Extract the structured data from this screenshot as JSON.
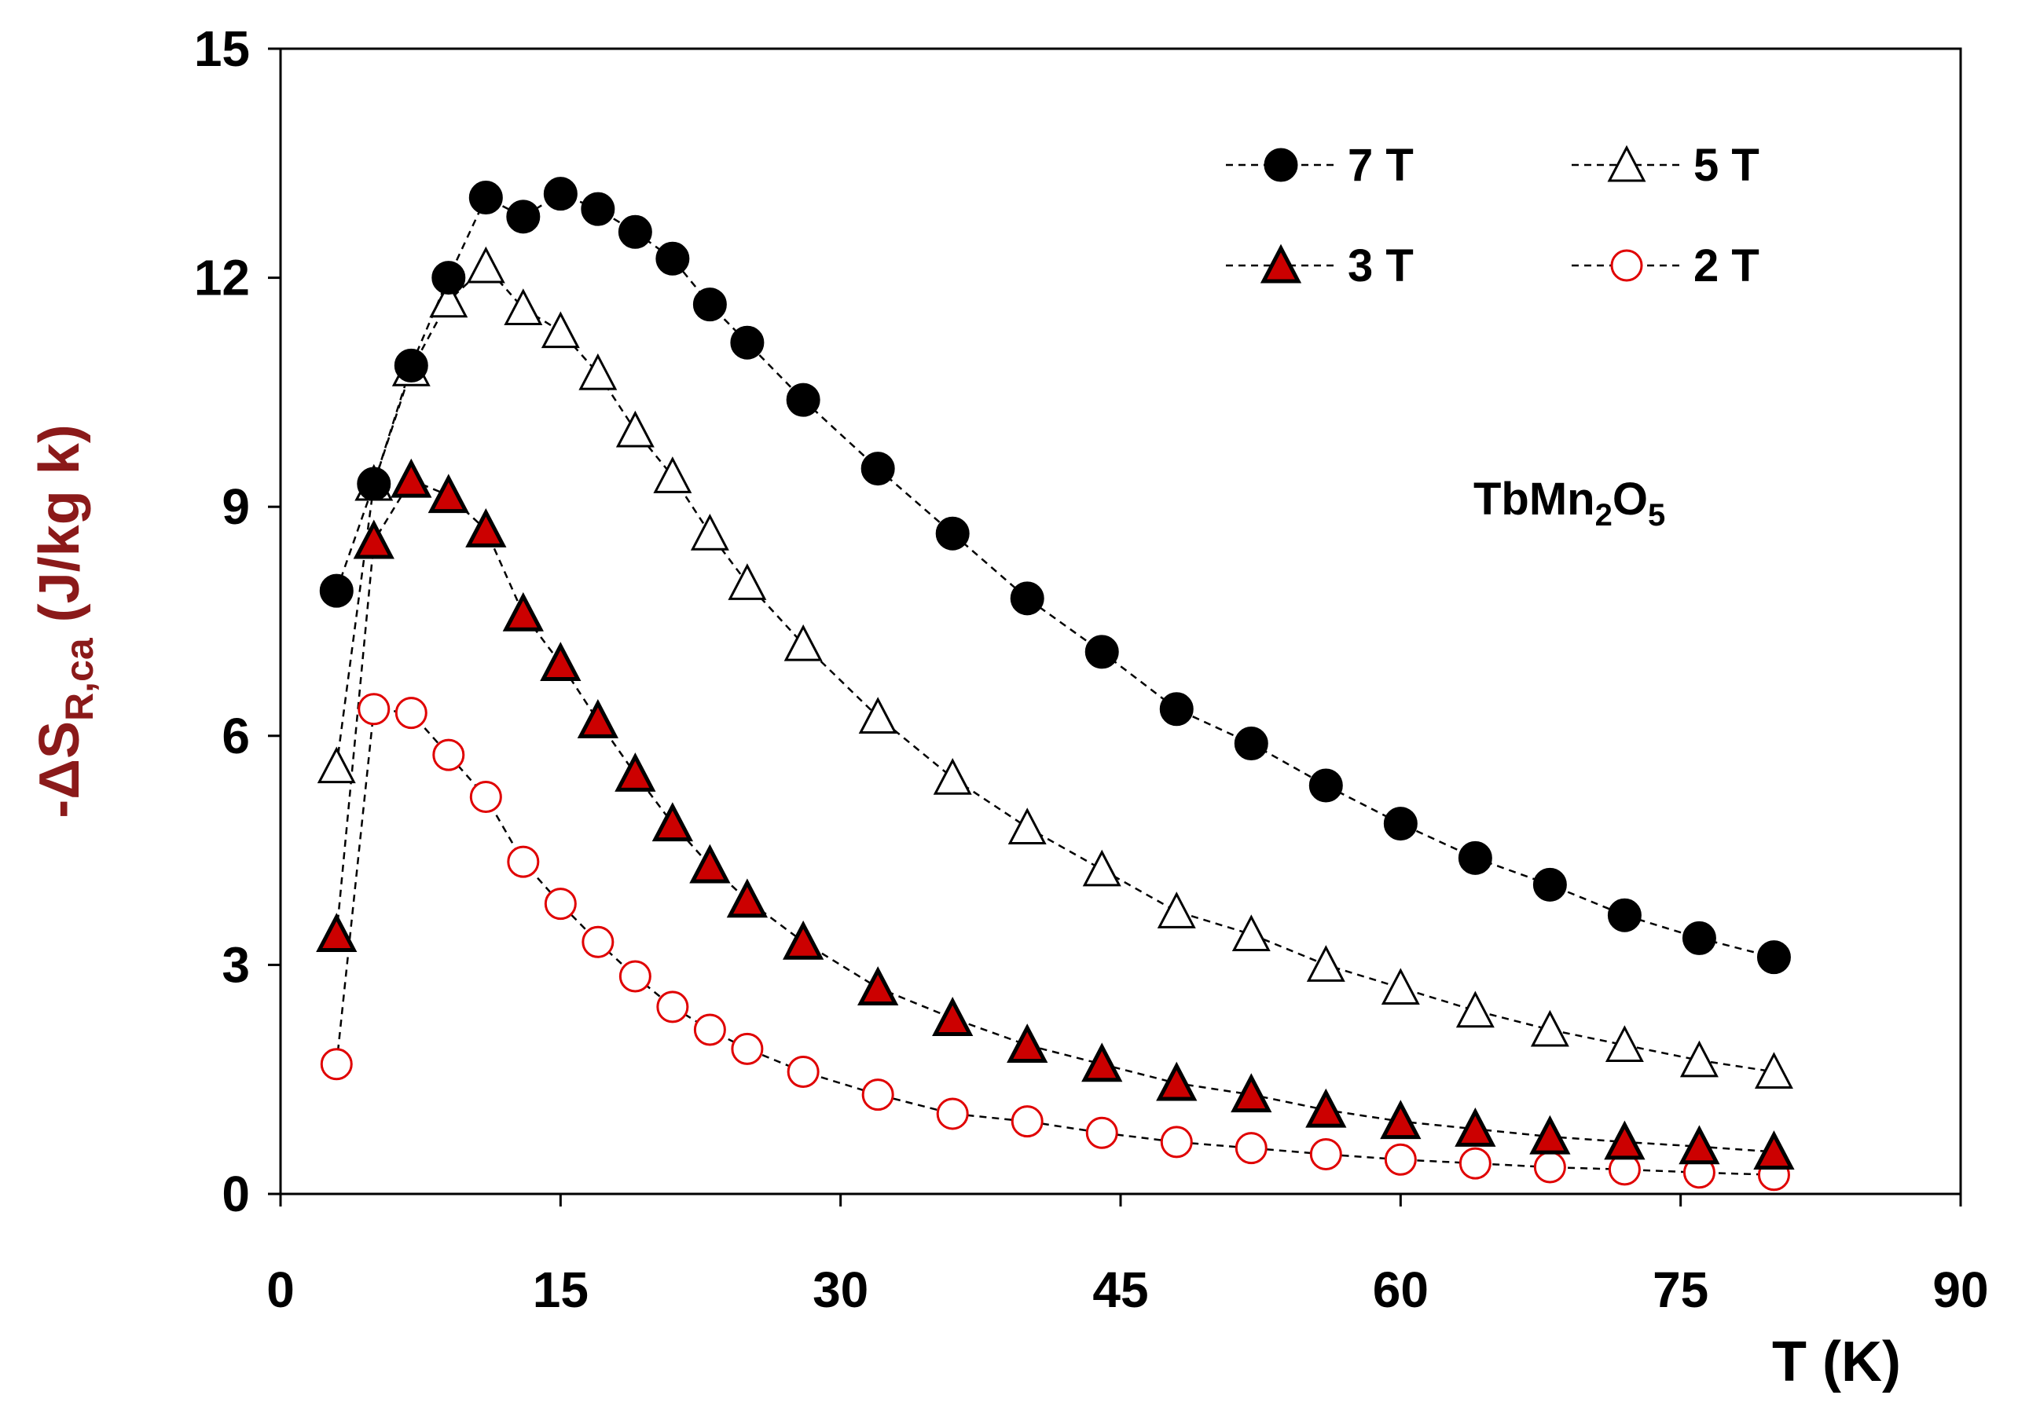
{
  "chart_data": {
    "type": "scatter",
    "title": "",
    "xlabel": "T (K)",
    "ylabel": {
      "prefix": "-ΔS",
      "subscript": "R,ca",
      "units": " (J/kg k)"
    },
    "xlim": [
      0,
      90
    ],
    "ylim": [
      0,
      15
    ],
    "xticks": [
      0,
      15,
      30,
      45,
      60,
      75,
      90
    ],
    "yticks": [
      0,
      3,
      6,
      9,
      12,
      15
    ],
    "grid": false,
    "legend_position": "top-right",
    "annotation": {
      "base": "TbMn",
      "sub1": "2",
      "mid": "O",
      "sub2": "5"
    },
    "series": [
      {
        "name": "7 T",
        "marker": "circle-filled",
        "color": "#000000",
        "x": [
          3,
          5,
          7,
          9,
          11,
          13,
          15,
          17,
          19,
          21,
          23,
          25,
          28,
          32,
          36,
          40,
          44,
          48,
          52,
          56,
          60,
          64,
          68,
          72,
          76,
          80
        ],
        "y": [
          7.9,
          9.3,
          10.85,
          12.0,
          13.05,
          12.8,
          13.1,
          12.9,
          12.6,
          12.25,
          11.65,
          11.15,
          10.4,
          9.5,
          8.65,
          7.8,
          7.1,
          6.35,
          5.9,
          5.35,
          4.85,
          4.4,
          4.05,
          3.65,
          3.35,
          3.1
        ]
      },
      {
        "name": "5 T",
        "marker": "triangle-open",
        "color": "#000000",
        "x": [
          3,
          5,
          7,
          9,
          11,
          13,
          15,
          17,
          19,
          21,
          23,
          25,
          28,
          32,
          36,
          40,
          44,
          48,
          52,
          56,
          60,
          64,
          68,
          72,
          76,
          80
        ],
        "y": [
          5.6,
          9.3,
          10.8,
          11.7,
          12.15,
          11.6,
          11.3,
          10.75,
          10.0,
          9.4,
          8.65,
          8.0,
          7.2,
          6.25,
          5.45,
          4.8,
          4.25,
          3.7,
          3.4,
          3.0,
          2.7,
          2.4,
          2.15,
          1.95,
          1.75,
          1.6
        ]
      },
      {
        "name": "3 T",
        "marker": "triangle-filled",
        "color": "#cc0000",
        "x": [
          3,
          5,
          7,
          9,
          11,
          13,
          15,
          17,
          19,
          21,
          23,
          25,
          28,
          32,
          36,
          40,
          44,
          48,
          52,
          56,
          60,
          64,
          68,
          72,
          76,
          80
        ],
        "y": [
          3.4,
          8.55,
          9.35,
          9.15,
          8.7,
          7.6,
          6.95,
          6.2,
          5.5,
          4.85,
          4.3,
          3.85,
          3.3,
          2.7,
          2.3,
          1.95,
          1.7,
          1.45,
          1.3,
          1.1,
          0.95,
          0.85,
          0.75,
          0.68,
          0.62,
          0.55
        ]
      },
      {
        "name": "2 T",
        "marker": "circle-open",
        "color": "#e00000",
        "x": [
          3,
          5,
          7,
          9,
          11,
          13,
          15,
          17,
          19,
          21,
          23,
          25,
          28,
          32,
          36,
          40,
          44,
          48,
          52,
          56,
          60,
          64,
          68,
          72,
          76,
          80
        ],
        "y": [
          1.7,
          6.35,
          6.3,
          5.75,
          5.2,
          4.35,
          3.8,
          3.3,
          2.85,
          2.45,
          2.15,
          1.9,
          1.6,
          1.3,
          1.05,
          0.95,
          0.8,
          0.68,
          0.6,
          0.52,
          0.45,
          0.4,
          0.35,
          0.32,
          0.28,
          0.25
        ]
      }
    ]
  }
}
